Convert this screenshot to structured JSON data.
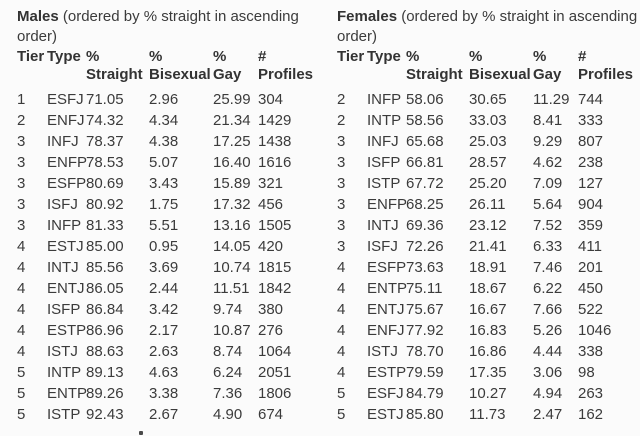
{
  "chart_data": [
    {
      "type": "table",
      "title_bold": "Males",
      "title_line1_rest": " (ordered by % straight in ascending",
      "title_line2": "order)",
      "columns": [
        {
          "line1": "Tier",
          "line2": ""
        },
        {
          "line1": "Type",
          "line2": ""
        },
        {
          "line1": "%",
          "line2": "Straight"
        },
        {
          "line1": "%",
          "line2": "Bisexual"
        },
        {
          "line1": "%",
          "line2": "Gay"
        },
        {
          "line1": "#",
          "line2": "Profiles"
        }
      ],
      "rows": [
        [
          "1",
          "ESFJ",
          "71.05",
          "2.96",
          "25.99",
          "304"
        ],
        [
          "2",
          "ENFJ",
          "74.32",
          "4.34",
          "21.34",
          "1429"
        ],
        [
          "3",
          "INFJ",
          "78.37",
          "4.38",
          "17.25",
          "1438"
        ],
        [
          "3",
          "ENFP",
          "78.53",
          "5.07",
          "16.40",
          "1616"
        ],
        [
          "3",
          "ESFP",
          "80.69",
          "3.43",
          "15.89",
          "321"
        ],
        [
          "3",
          "ISFJ",
          "80.92",
          "1.75",
          "17.32",
          "456"
        ],
        [
          "3",
          "INFP",
          "81.33",
          "5.51",
          "13.16",
          "1505"
        ],
        [
          "4",
          "ESTJ",
          "85.00",
          "0.95",
          "14.05",
          "420"
        ],
        [
          "4",
          "INTJ",
          "85.56",
          "3.69",
          "10.74",
          "1815"
        ],
        [
          "4",
          "ENTJ",
          "86.05",
          "2.44",
          "11.51",
          "1842"
        ],
        [
          "4",
          "ISFP",
          "86.84",
          "3.42",
          "9.74",
          "380"
        ],
        [
          "4",
          "ESTP",
          "86.96",
          "2.17",
          "10.87",
          "276"
        ],
        [
          "4",
          "ISTJ",
          "88.63",
          "2.63",
          "8.74",
          "1064"
        ],
        [
          "5",
          "INTP",
          "89.13",
          "4.63",
          "6.24",
          "2051"
        ],
        [
          "5",
          "ENTP",
          "89.26",
          "3.38",
          "7.36",
          "1806"
        ],
        [
          "5",
          "ISTP",
          "92.43",
          "2.67",
          "4.90",
          "674"
        ]
      ]
    },
    {
      "type": "table",
      "title_bold": "Females",
      "title_line1_rest": " (ordered by % straight in ascending",
      "title_line2": "order)",
      "columns": [
        {
          "line1": "Tier",
          "line2": ""
        },
        {
          "line1": "Type",
          "line2": ""
        },
        {
          "line1": "%",
          "line2": "Straight"
        },
        {
          "line1": "%",
          "line2": "Bisexual"
        },
        {
          "line1": "%",
          "line2": "Gay"
        },
        {
          "line1": "#",
          "line2": "Profiles"
        }
      ],
      "rows": [
        [
          "2",
          "INFP",
          "58.06",
          "30.65",
          "11.29",
          "744"
        ],
        [
          "2",
          "INTP",
          "58.56",
          "33.03",
          "8.41",
          "333"
        ],
        [
          "3",
          "INFJ",
          "65.68",
          "25.03",
          "9.29",
          "807"
        ],
        [
          "3",
          "ISFP",
          "66.81",
          "28.57",
          "4.62",
          "238"
        ],
        [
          "3",
          "ISTP",
          "67.72",
          "25.20",
          "7.09",
          "127"
        ],
        [
          "3",
          "ENFP",
          "68.25",
          "26.11",
          "5.64",
          "904"
        ],
        [
          "3",
          "INTJ",
          "69.36",
          "23.12",
          "7.52",
          "359"
        ],
        [
          "3",
          "ISFJ",
          "72.26",
          "21.41",
          "6.33",
          "411"
        ],
        [
          "4",
          "ESFP",
          "73.63",
          "18.91",
          "7.46",
          "201"
        ],
        [
          "4",
          "ENTP",
          "75.11",
          "18.67",
          "6.22",
          "450"
        ],
        [
          "4",
          "ENTJ",
          "75.67",
          "16.67",
          "7.66",
          "522"
        ],
        [
          "4",
          "ENFJ",
          "77.92",
          "16.83",
          "5.26",
          "1046"
        ],
        [
          "4",
          "ISTJ",
          "78.70",
          "16.86",
          "4.44",
          "338"
        ],
        [
          "4",
          "ESTP",
          "79.59",
          "17.35",
          "3.06",
          "98"
        ],
        [
          "5",
          "ESFJ",
          "84.79",
          "10.27",
          "4.94",
          "263"
        ],
        [
          "5",
          "ESTJ",
          "85.80",
          "11.73",
          "2.47",
          "162"
        ]
      ]
    }
  ],
  "page": {
    "background_color": "#fbfbfb",
    "text_color": "#3b3b3b"
  }
}
